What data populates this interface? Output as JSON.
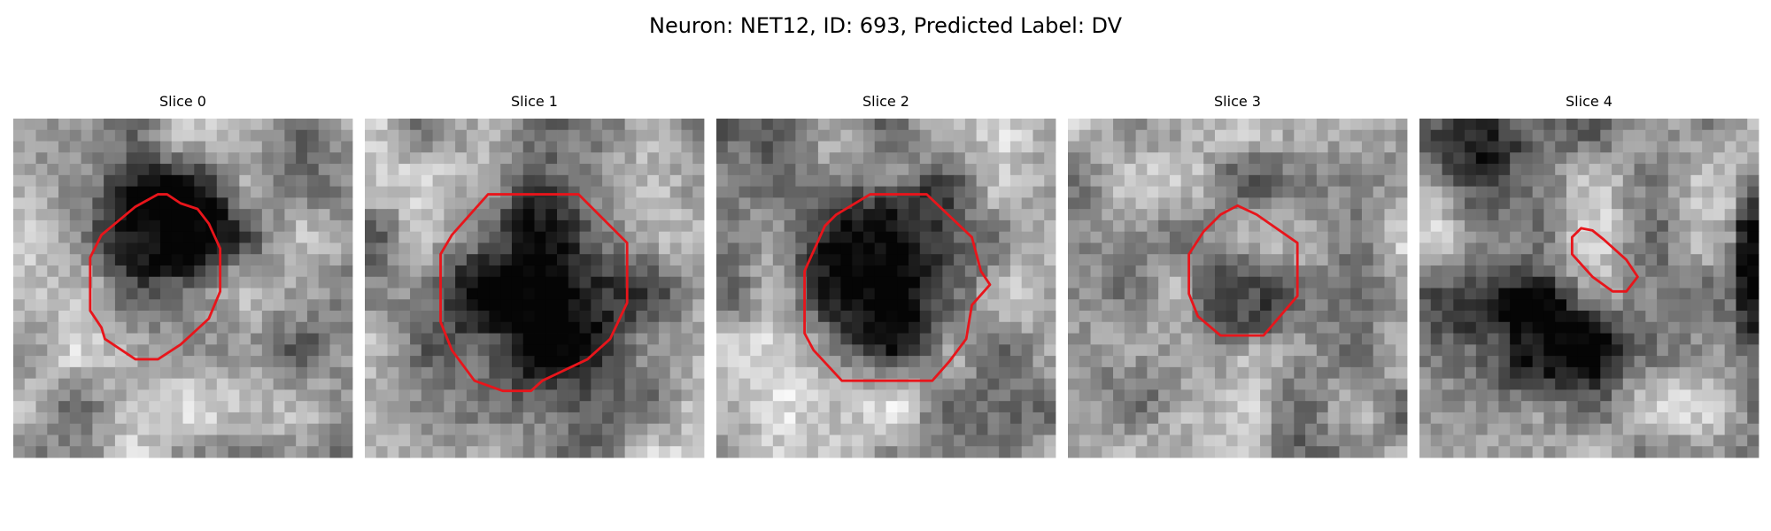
{
  "title": "Neuron: NET12, ID: 693, Predicted Label: DV",
  "panels": [
    {
      "title": "Slice 0"
    },
    {
      "title": "Slice 1"
    },
    {
      "title": "Slice 2"
    },
    {
      "title": "Slice 3"
    },
    {
      "title": "Slice 4"
    }
  ]
}
